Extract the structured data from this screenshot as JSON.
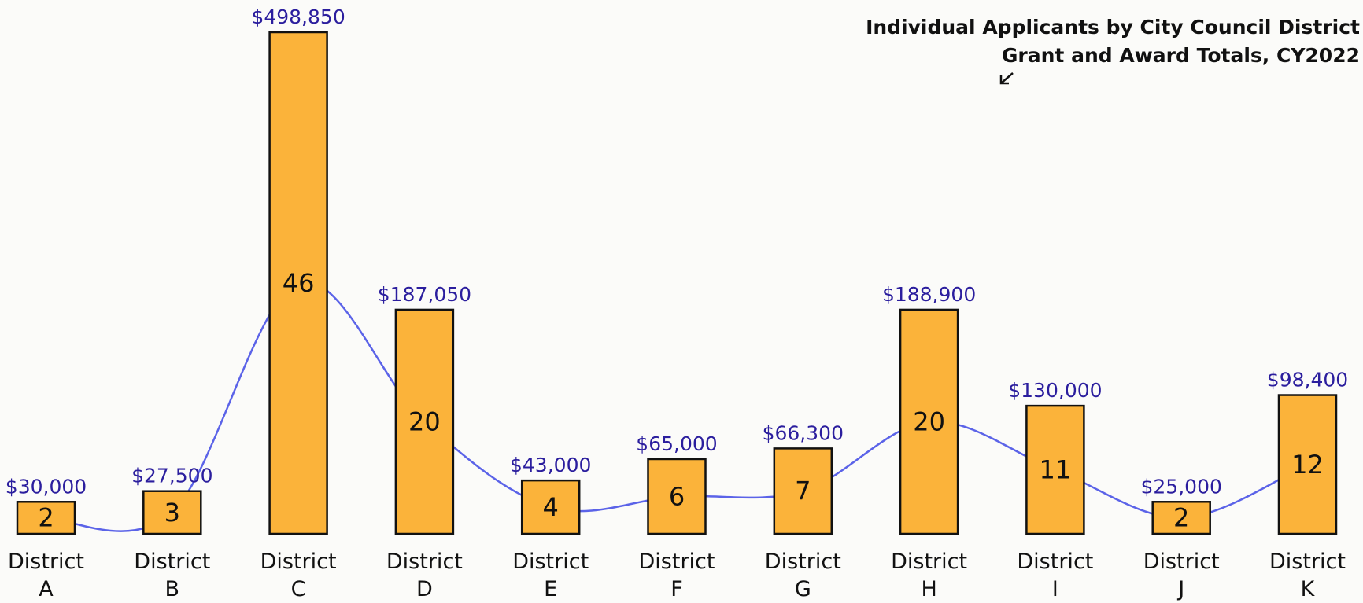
{
  "chart_data": {
    "type": "bar",
    "title": "Individual Applicants by City Council District",
    "subtitle": "Grant and Award Totals, CY2022",
    "categories": [
      "District A",
      "District B",
      "District C",
      "District D",
      "District E",
      "District F",
      "District G",
      "District H",
      "District I",
      "District J",
      "District K"
    ],
    "values": [
      2,
      3,
      46,
      20,
      4,
      6,
      7,
      20,
      11,
      2,
      12
    ],
    "amounts": [
      30000,
      27500,
      498850,
      187050,
      43000,
      65000,
      66300,
      188900,
      130000,
      25000,
      98400
    ],
    "amount_labels": [
      "$30,000",
      "$27,500",
      "$498,850",
      "$187,050",
      "$43,000",
      "$65,000",
      "$66,300",
      "$188,900",
      "$130,000",
      "$25,000",
      "$98,400"
    ],
    "color": "#fbb33a",
    "line_color": "#5b63e8",
    "label_color": "#2b1e9e",
    "ylim": [
      -1,
      46
    ]
  }
}
